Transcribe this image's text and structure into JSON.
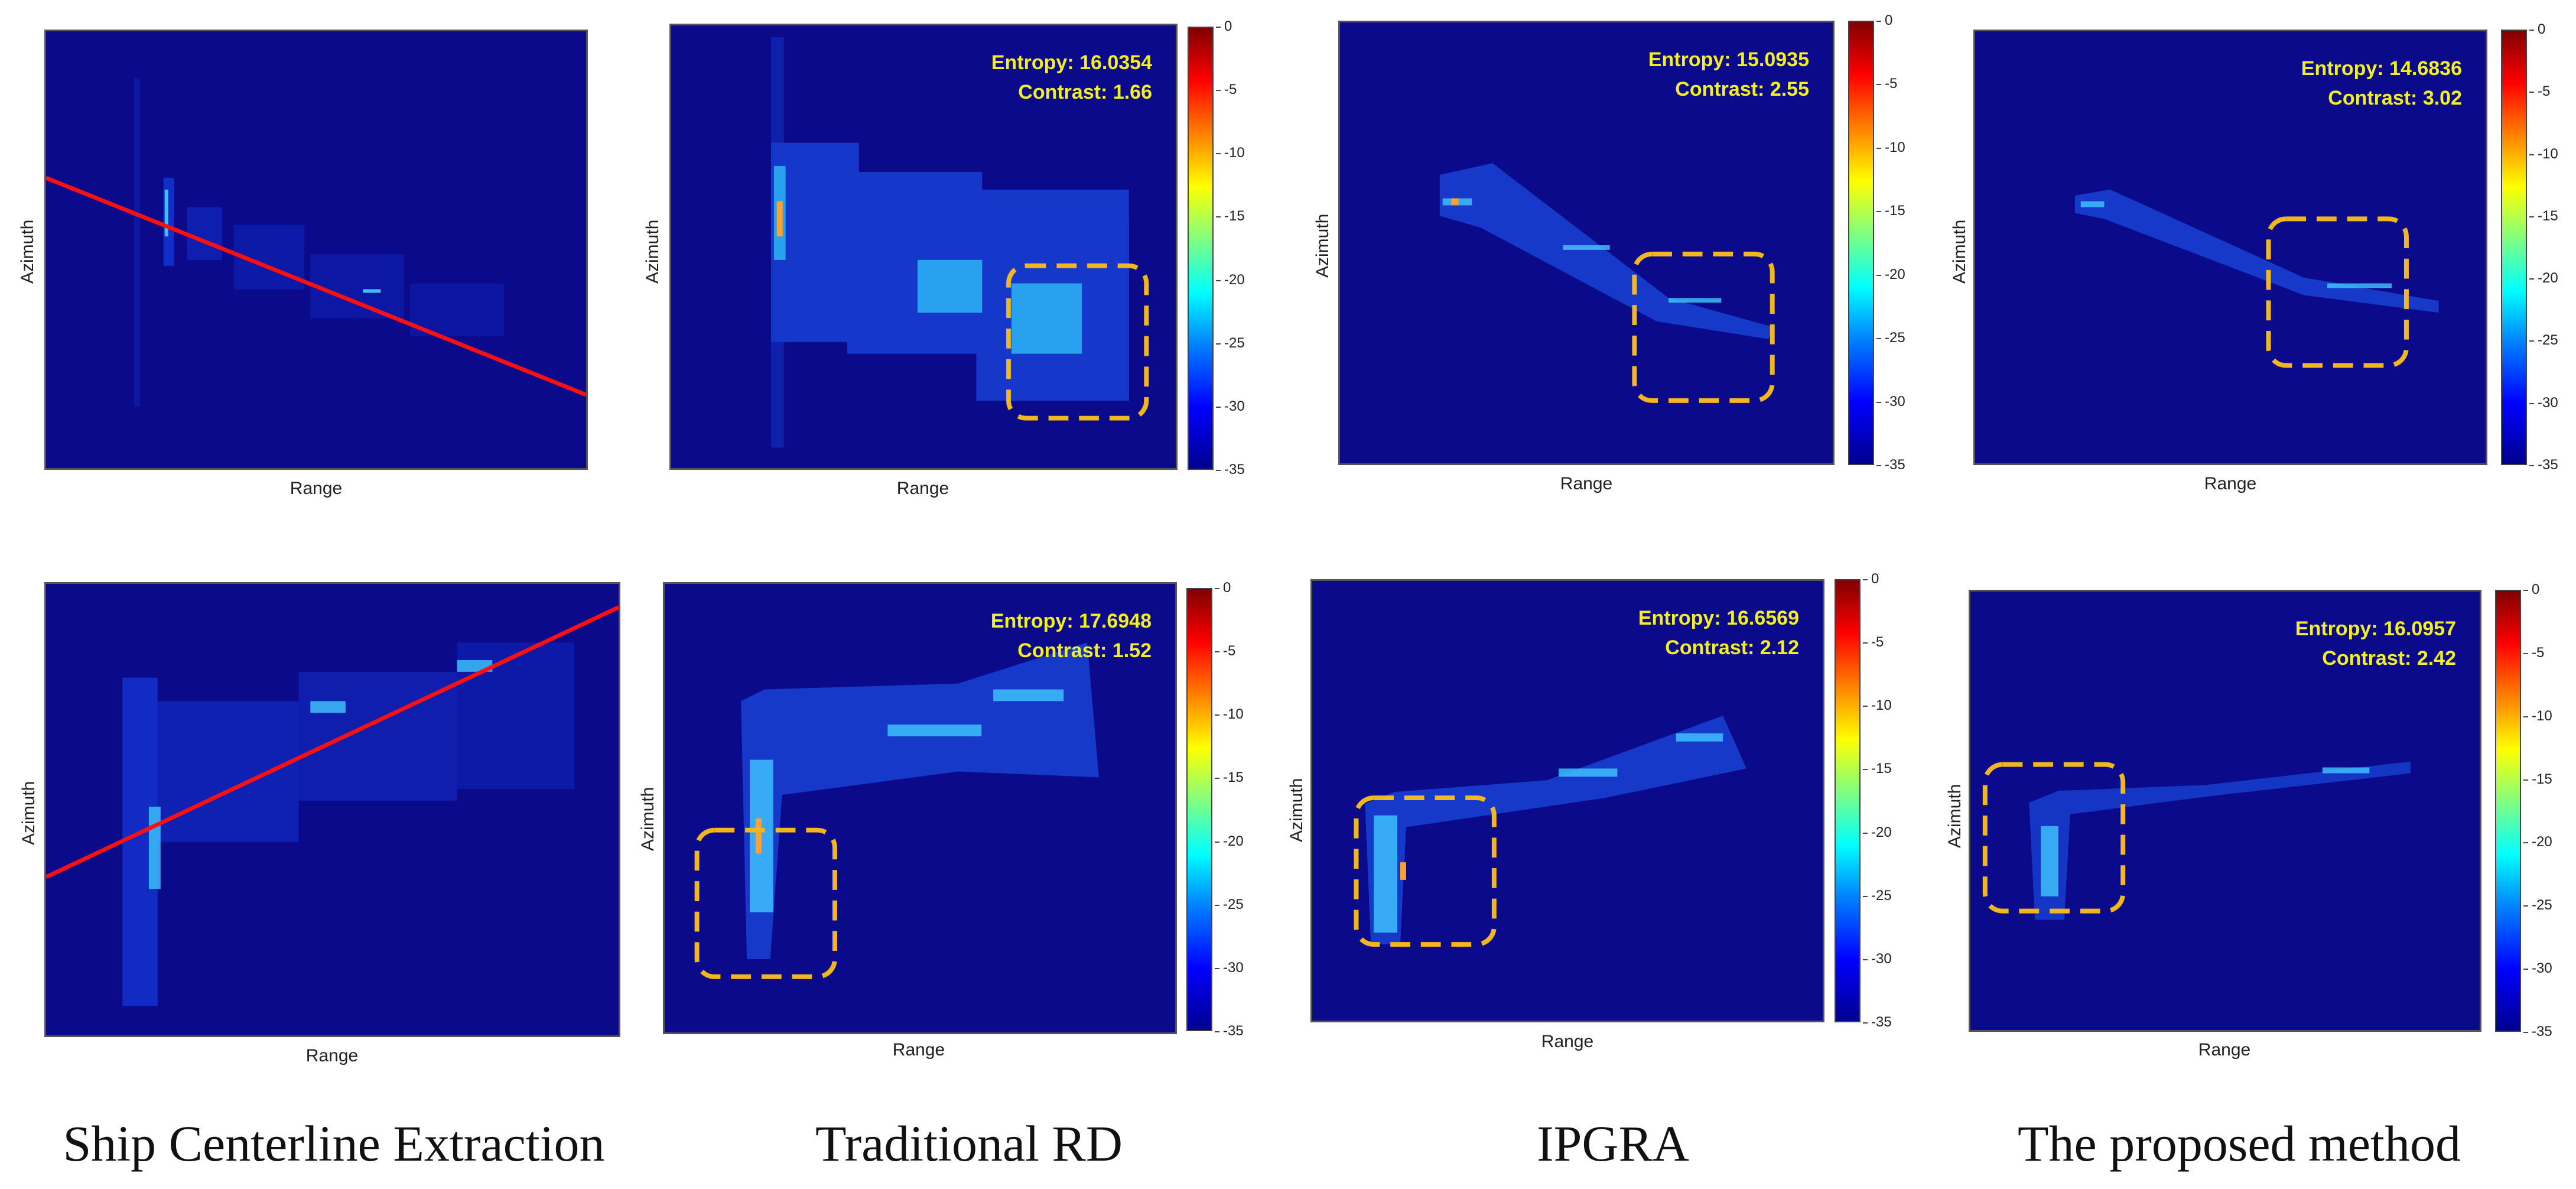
{
  "axis": {
    "xlabel": "Range",
    "ylabel": "Azimuth"
  },
  "colorbar": {
    "ticks": [
      "0",
      "-5",
      "-10",
      "-15",
      "-20",
      "-25",
      "-30",
      "-35"
    ]
  },
  "captions": [
    "Ship Centerline Extraction",
    "Traditional RD",
    "IPGRA",
    "The proposed method"
  ],
  "row1": {
    "rd": {
      "entropy": "Entropy: 16.0354",
      "contrast": "Contrast: 1.66"
    },
    "ipgra": {
      "entropy": "Entropy: 15.0935",
      "contrast": "Contrast: 2.55"
    },
    "proposed": {
      "entropy": "Entropy: 14.6836",
      "contrast": "Contrast: 3.02"
    }
  },
  "row2": {
    "rd": {
      "entropy": "Entropy: 17.6948",
      "contrast": "Contrast: 1.52"
    },
    "ipgra": {
      "entropy": "Entropy: 16.6569",
      "contrast": "Contrast: 2.12"
    },
    "proposed": {
      "entropy": "Entropy: 16.0957",
      "contrast": "Contrast: 2.42"
    }
  },
  "colors": {
    "background": "#0a0a8a",
    "centerline": "#ff1010",
    "roi_box": "#f2b71f",
    "metric_text": "#f4ef20"
  }
}
